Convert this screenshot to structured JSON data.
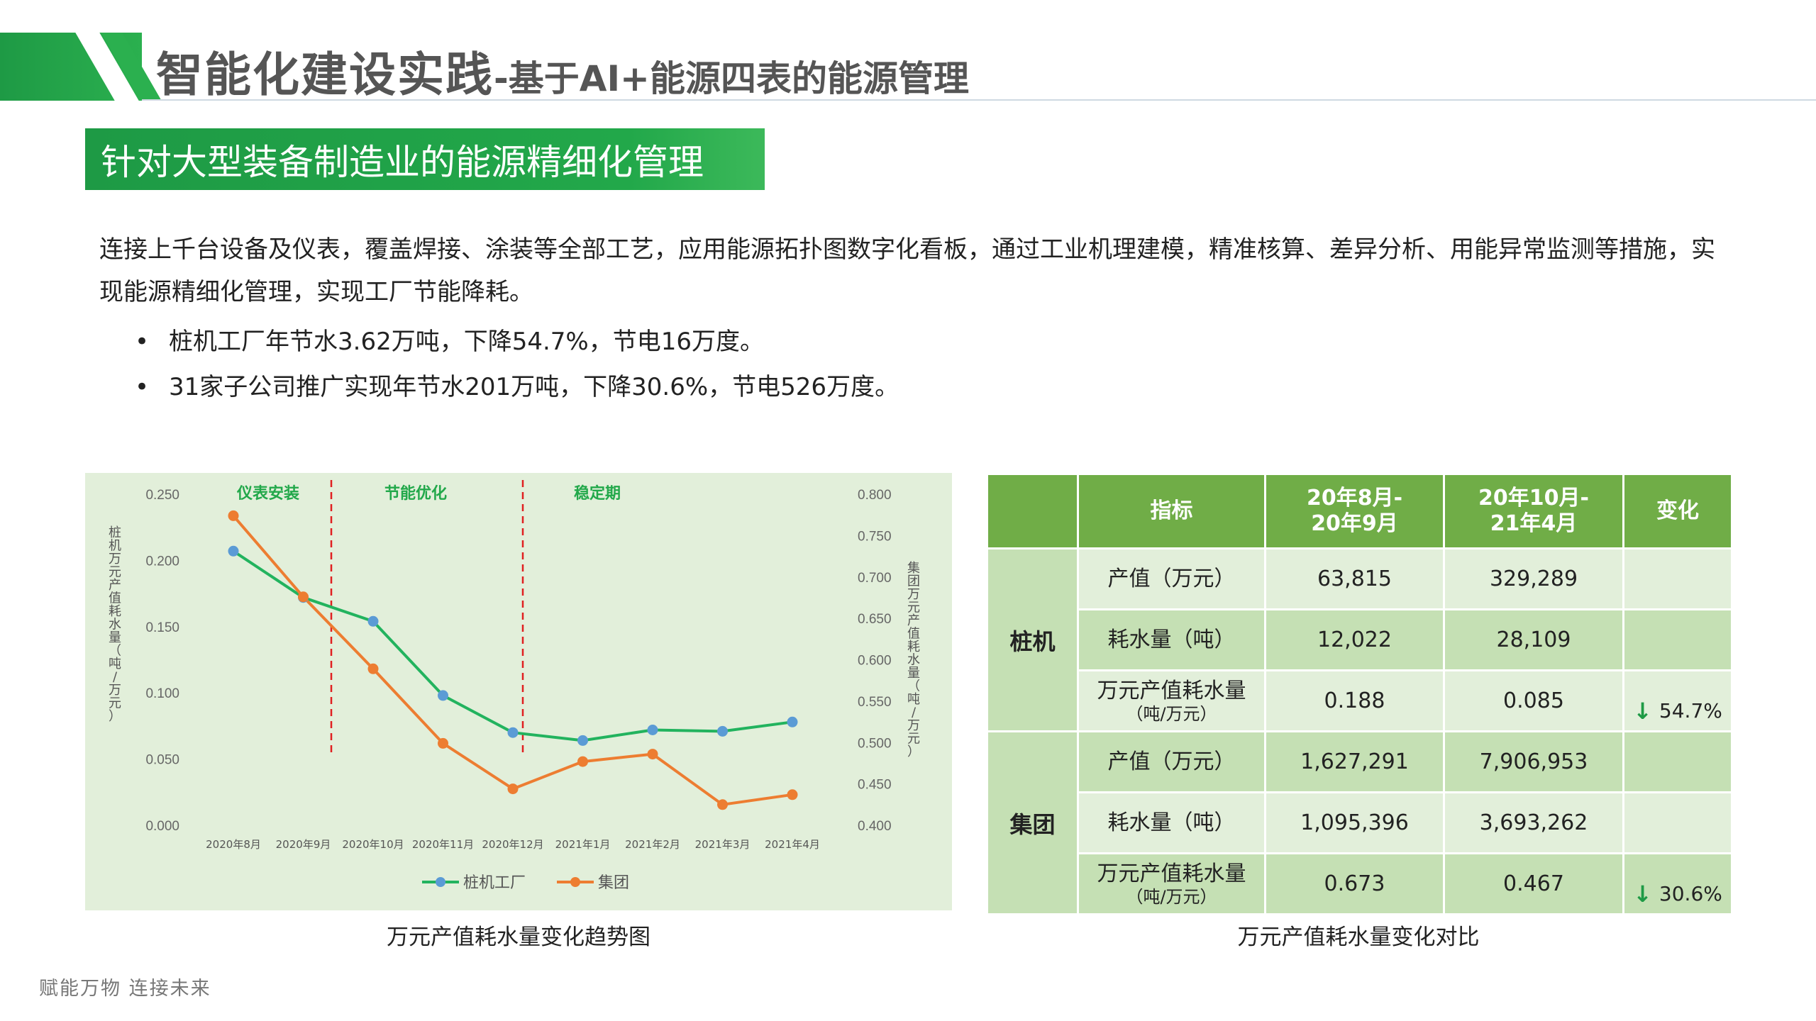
{
  "header": {
    "title_main": "智能化建设实践",
    "title_sub": "-基于AI+能源四表的能源管理"
  },
  "section": {
    "banner": "针对大型装备制造业的能源精细化管理"
  },
  "intro": {
    "paragraph": "连接上千台设备及仪表，覆盖焊接、涂装等全部工艺，应用能源拓扑图数字化看板，通过工业机理建模，精准核算、差异分析、用能异常监测等措施，实现能源精细化管理，实现工厂节能降耗。",
    "bullets": [
      "桩机工厂年节水3.62万吨，下降54.7%，节电16万度。",
      "31家子公司推广实现年节水201万吨，下降30.6%，节电526万度。"
    ],
    "bullet_symbol": "•"
  },
  "chart_data": {
    "type": "line",
    "title": "",
    "caption": "万元产值耗水量变化趋势图",
    "categories": [
      "2020年8月",
      "2020年9月",
      "2020年10月",
      "2020年11月",
      "2020年12月",
      "2021年1月",
      "2021年2月",
      "2021年3月",
      "2021年4月"
    ],
    "phases": [
      "仪表安装",
      "节能优化",
      "稳定期"
    ],
    "ylabel_left": "桩机万元产值耗水量（吨/万元）",
    "ylabel_right": "集团万元产值耗水量（吨/万元）",
    "ylim_left": [
      0,
      0.25
    ],
    "ylim_right": [
      0.4,
      0.8
    ],
    "yticks_left": [
      "0.250",
      "0.200",
      "0.150",
      "0.100",
      "0.050",
      "0.000"
    ],
    "yticks_right": [
      "0.800",
      "0.750",
      "0.700",
      "0.650",
      "0.600",
      "0.550",
      "0.500",
      "0.450",
      "0.400"
    ],
    "legend_position": "bottom",
    "grid": false,
    "series": [
      {
        "name": "桩机工厂",
        "axis": "left",
        "color": "#22b35e",
        "values": [
          0.207,
          0.172,
          0.154,
          0.098,
          0.07,
          0.064,
          0.072,
          0.071,
          0.078
        ]
      },
      {
        "name": "集团",
        "axis": "right",
        "color": "#ed7d31",
        "values": [
          0.774,
          0.676,
          0.589,
          0.499,
          0.444,
          0.477,
          0.486,
          0.425,
          0.437
        ]
      }
    ],
    "colors": {
      "phase_line": "#e02020",
      "phase_label": "#22a84a",
      "point_left": "#5b9bd5"
    }
  },
  "table": {
    "caption": "万元产值耗水量变化对比",
    "headers": [
      "",
      "指标",
      "20年8月-\n20年9月",
      "20年10月-\n21年4月",
      "变化"
    ],
    "header_lines": {
      "c2_l1": "20年8月-",
      "c2_l2": "20年9月",
      "c3_l1": "20年10月-",
      "c3_l2": "21年4月"
    },
    "groups": [
      {
        "name": "桩机",
        "rows": [
          {
            "metric": "产值（万元）",
            "metric_sub": "",
            "v1": "63,815",
            "v2": "329,289",
            "change": ""
          },
          {
            "metric": "耗水量（吨）",
            "metric_sub": "",
            "v1": "12,022",
            "v2": "28,109",
            "change": ""
          },
          {
            "metric": "万元产值耗水量",
            "metric_sub": "（吨/万元）",
            "v1": "0.188",
            "v2": "0.085",
            "change": "54.7%"
          }
        ]
      },
      {
        "name": "集团",
        "rows": [
          {
            "metric": "产值（万元）",
            "metric_sub": "",
            "v1": "1,627,291",
            "v2": "7,906,953",
            "change": ""
          },
          {
            "metric": "耗水量（吨）",
            "metric_sub": "",
            "v1": "1,095,396",
            "v2": "3,693,262",
            "change": ""
          },
          {
            "metric": "万元产值耗水量",
            "metric_sub": "（吨/万元）",
            "v1": "0.673",
            "v2": "0.467",
            "change": "30.6%"
          }
        ]
      }
    ],
    "down_arrow": "↓"
  },
  "footer": {
    "slogan": "赋能万物  连接未来"
  },
  "colors": {
    "brand_green": "#22a84a",
    "table_header": "#70ad47",
    "table_light": "#e2efda",
    "table_dark": "#c5e0b4"
  }
}
